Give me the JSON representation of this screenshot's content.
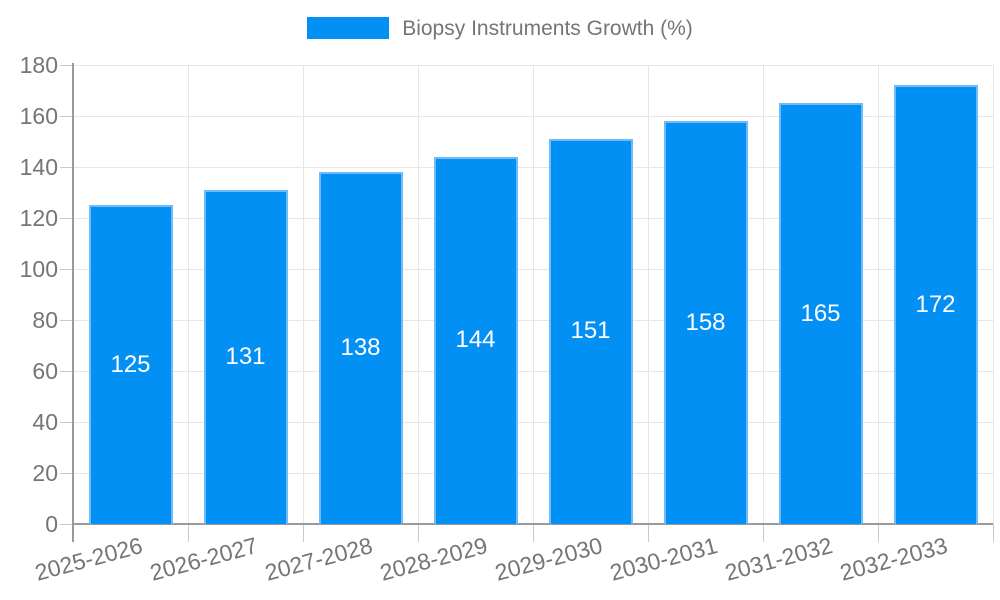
{
  "legend": {
    "label": "Biopsy Instruments Growth (%)"
  },
  "colors": {
    "background": "#ffffff",
    "bar": "#0290f5",
    "bar_edge": "#6ebbf8",
    "bar_label": "#ffffff",
    "grid": "#e6e6e6",
    "tick": "#c9c9c9",
    "axis": "#9a9a9a",
    "label": "#757575"
  },
  "chart_data": {
    "type": "bar",
    "title": "Biopsy Instruments Growth (%)",
    "categories": [
      "2025-2026",
      "2026-2027",
      "2027-2028",
      "2028-2029",
      "2029-2030",
      "2030-2031",
      "2031-2032",
      "2032-2033"
    ],
    "values": [
      125,
      131,
      138,
      144,
      151,
      158,
      165,
      172
    ],
    "xlabel": "",
    "ylabel": "",
    "ylim": [
      0,
      180
    ],
    "yticks": [
      0,
      20,
      40,
      60,
      80,
      100,
      120,
      140,
      160,
      180
    ],
    "grid": true,
    "legend_position": "top",
    "value_labels": "inside-bar-center",
    "bar_color": "#0290f5"
  }
}
